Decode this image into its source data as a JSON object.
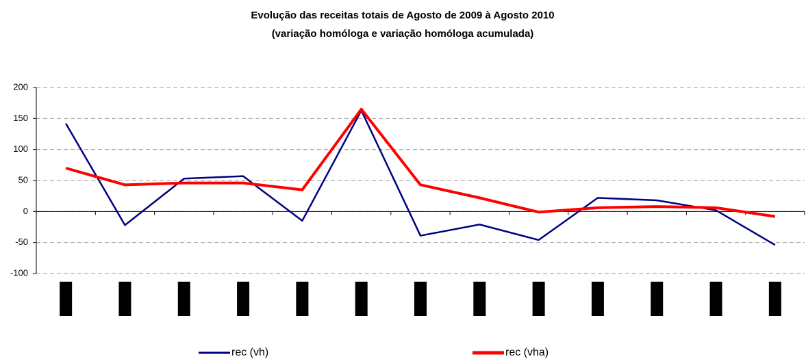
{
  "chart_data": {
    "type": "line",
    "title": "Evolução das receitas  totais de Agosto de 2009 à Agosto 2010",
    "subtitle": "(variação homóloga e variação homóloga acumulada)",
    "categories": [
      null,
      null,
      null,
      null,
      null,
      null,
      null,
      null,
      null,
      null,
      null,
      null,
      null
    ],
    "series": [
      {
        "name": "rec (vh)",
        "color": "#000080",
        "values": [
          142,
          -22,
          53,
          57,
          -15,
          163,
          -39,
          -21,
          -46,
          22,
          18,
          2,
          -54
        ]
      },
      {
        "name": "rec (vha)",
        "color": "#ff0000",
        "values": [
          70,
          43,
          46,
          46,
          35,
          165,
          43,
          22,
          -1,
          6,
          8,
          6,
          -8
        ]
      }
    ],
    "ylim": [
      -100,
      200
    ],
    "yticks": [
      -100,
      -50,
      0,
      50,
      100,
      150,
      200
    ],
    "grid": true,
    "legend": "bottom"
  }
}
